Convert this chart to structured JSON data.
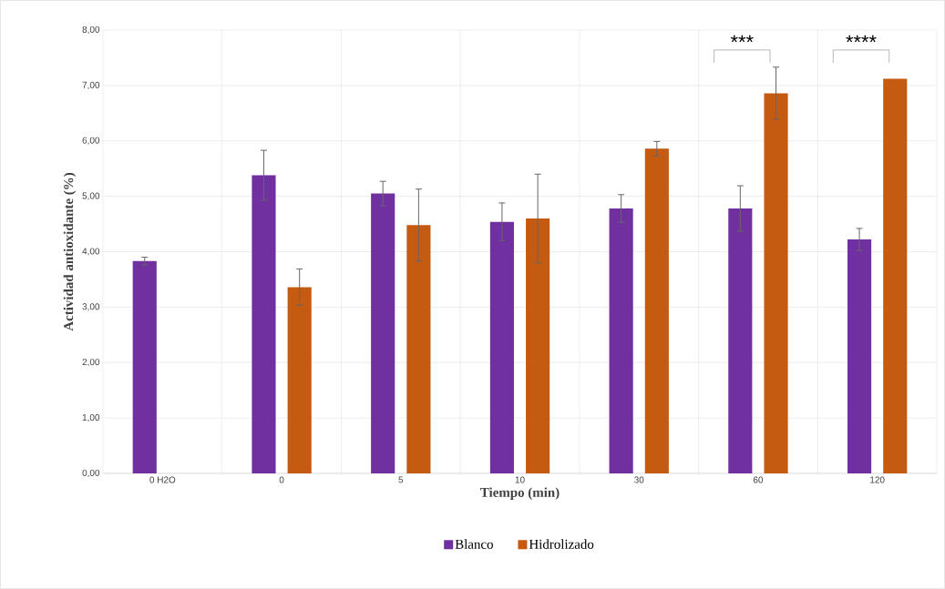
{
  "chart_data": {
    "type": "bar",
    "xlabel": "Tiempo (min)",
    "ylabel": "Actividad antioxidante (%)",
    "categories": [
      "0 H2O",
      "0",
      "5",
      "10",
      "30",
      "60",
      "120"
    ],
    "series": [
      {
        "name": "Blanco",
        "color": "#7030a0",
        "values": [
          3.83,
          5.38,
          5.05,
          4.54,
          4.78,
          4.78,
          4.22
        ],
        "errors": [
          0.07,
          0.45,
          0.22,
          0.34,
          0.25,
          0.41,
          0.2
        ]
      },
      {
        "name": "Hidrolizado",
        "color": "#c55a11",
        "values": [
          null,
          3.36,
          4.48,
          4.6,
          5.86,
          6.86,
          7.12
        ],
        "errors": [
          null,
          0.33,
          0.65,
          0.8,
          0.13,
          0.47,
          null
        ]
      }
    ],
    "ylim": [
      0,
      8
    ],
    "yticks": [
      {
        "value": 0,
        "label": "0,00"
      },
      {
        "value": 1,
        "label": "1,00"
      },
      {
        "value": 2,
        "label": "2,00"
      },
      {
        "value": 3,
        "label": "3,00"
      },
      {
        "value": 4,
        "label": "4,00"
      },
      {
        "value": 5,
        "label": "5,00"
      },
      {
        "value": 6,
        "label": "6,00"
      },
      {
        "value": 7,
        "label": "7,00"
      },
      {
        "value": 8,
        "label": "8,00"
      }
    ],
    "grid": true,
    "legend": "bottom",
    "annotations": [
      "***",
      "****"
    ]
  }
}
